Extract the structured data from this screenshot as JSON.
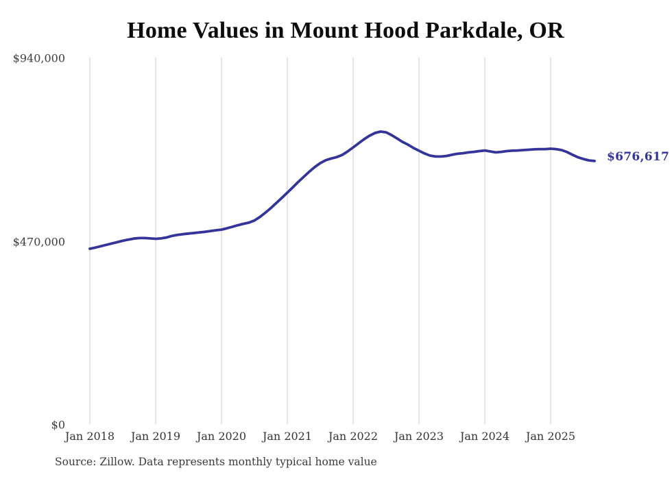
{
  "chart": {
    "title": "Home Values in Mount Hood Parkdale, OR",
    "source_note": "Source: Zillow. Data represents monthly typical home value"
  },
  "chart_data": {
    "type": "line",
    "title": "Home Values in Mount Hood Parkdale, OR",
    "source_note": "Source: Zillow. Data represents monthly typical home value",
    "frequency": "monthly",
    "x_start": "Jan 2018",
    "x_end": "Sep 2025",
    "xtick_labels": [
      "Jan 2018",
      "Jan 2019",
      "Jan 2020",
      "Jan 2021",
      "Jan 2022",
      "Jan 2023",
      "Jan 2024",
      "Jan 2025"
    ],
    "ytick_labels": [
      {
        "label": "$0",
        "value": 0
      },
      {
        "label": "$470,000",
        "value": 470000
      },
      {
        "label": "$940,000",
        "value": 940000
      }
    ],
    "ylim": [
      0,
      940000
    ],
    "grid": "vertical-only",
    "grid_color": "#cbcbcb",
    "line_color": "#34349b",
    "end_label": {
      "text": "$676,617",
      "value": 676617,
      "color": "#32329b"
    },
    "series": [
      {
        "name": "Typical home value",
        "values": [
          451500,
          454500,
          458000,
          461500,
          465000,
          468500,
          472000,
          475000,
          477500,
          479000,
          479000,
          478000,
          477000,
          478000,
          480500,
          484500,
          487000,
          489000,
          490500,
          492000,
          493500,
          495000,
          497000,
          499000,
          500500,
          504000,
          508000,
          512000,
          515500,
          518500,
          524000,
          533000,
          544000,
          556000,
          569000,
          582000,
          595500,
          609000,
          623000,
          636000,
          649000,
          661000,
          671000,
          678500,
          683000,
          686500,
          692000,
          701000,
          711500,
          722000,
          732500,
          741500,
          748500,
          752000,
          750000,
          743000,
          734500,
          725500,
          718500,
          710000,
          703000,
          696000,
          690500,
          688000,
          688000,
          689500,
          692500,
          695000,
          696500,
          698500,
          700000,
          702000,
          703500,
          701000,
          698500,
          700000,
          702000,
          703000,
          703500,
          704500,
          705500,
          706500,
          707000,
          707000,
          708000,
          707000,
          704500,
          699500,
          692500,
          686000,
          681500,
          678000,
          676617
        ]
      }
    ]
  }
}
